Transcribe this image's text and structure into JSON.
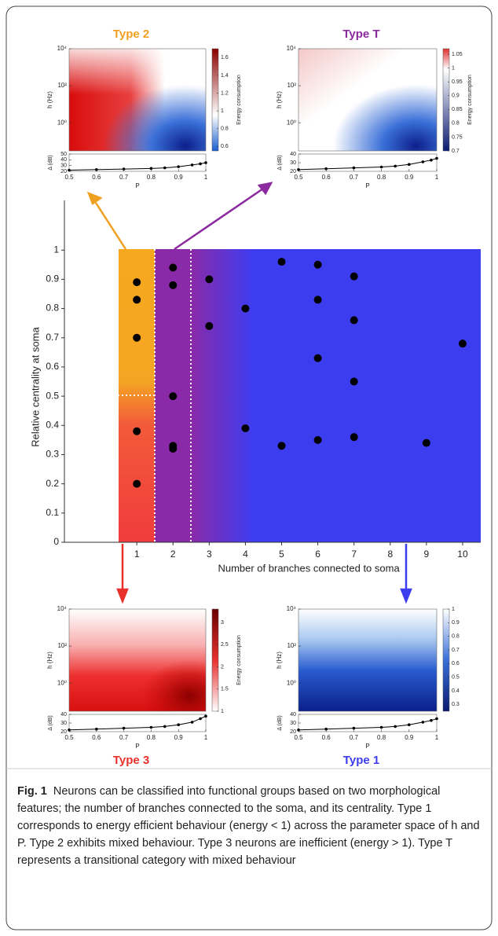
{
  "chart_data": [
    {
      "type": "scatter",
      "xlabel": "Number of branches connected to soma",
      "ylabel": "Relative centrality at soma",
      "x": [
        1,
        1,
        1,
        1,
        1,
        2,
        2,
        2,
        2,
        2,
        3,
        3,
        4,
        4,
        5,
        5,
        6,
        6,
        6,
        6,
        7,
        7,
        7,
        7,
        9,
        10
      ],
      "y": [
        0.89,
        0.83,
        0.7,
        0.38,
        0.2,
        0.94,
        0.88,
        0.5,
        0.33,
        0.32,
        0.9,
        0.74,
        0.8,
        0.39,
        0.96,
        0.33,
        0.95,
        0.83,
        0.63,
        0.35,
        0.91,
        0.76,
        0.55,
        0.36,
        0.34,
        0.68
      ],
      "color": "#000000",
      "xlim": [
        -1,
        10.5
      ],
      "xticks": [
        1,
        2,
        3,
        4,
        5,
        6,
        7,
        8,
        9,
        10
      ],
      "ylim": [
        0,
        1.17
      ],
      "yticks": [
        0,
        0.1,
        0.2,
        0.3,
        0.4,
        0.5,
        0.6,
        0.7,
        0.8,
        0.9,
        1
      ]
    },
    {
      "type": "heatmap",
      "title": "Type 2",
      "title_color": "#f0a020",
      "xlabel": "P",
      "ylabel": "h (Hz)",
      "xlim": [
        0.5,
        1
      ],
      "xticks": [
        0.5,
        0.6,
        0.7,
        0.8,
        0.9,
        1
      ],
      "log_scale": true,
      "ylim": [
        0.03,
        10000
      ],
      "yticks": [
        {
          "value": 1,
          "label": "10⁰"
        },
        {
          "value": 100,
          "label": "10²"
        },
        {
          "value": 10000,
          "label": "10⁴"
        }
      ],
      "colorbar": {
        "label": "Energy consumption",
        "lim": [
          0.55,
          1.7
        ],
        "ticks": [
          0.6,
          0.8,
          1,
          1.2,
          1.4,
          1.6
        ]
      },
      "delta": {
        "ylabel": "Δ (dB)",
        "ylim": [
          20,
          50
        ],
        "yticks": [
          20,
          30,
          40,
          50
        ],
        "x": [
          0.5,
          0.6,
          0.7,
          0.8,
          0.85,
          0.9,
          0.95,
          0.98,
          1
        ],
        "values": [
          22,
          23,
          24,
          25,
          26,
          28,
          31,
          33,
          35
        ]
      }
    },
    {
      "type": "heatmap",
      "title": "Type T",
      "title_color": "#8b2a9e",
      "xlabel": "P",
      "ylabel": "h (Hz)",
      "xlim": [
        0.5,
        1
      ],
      "xticks": [
        0.5,
        0.6,
        0.7,
        0.8,
        0.9,
        1
      ],
      "log_scale": true,
      "ylim": [
        0.03,
        10000
      ],
      "yticks": [
        {
          "value": 1,
          "label": "10⁰"
        },
        {
          "value": 100,
          "label": "10²"
        },
        {
          "value": 10000,
          "label": "10⁴"
        }
      ],
      "colorbar": {
        "label": "Energy consumption",
        "lim": [
          0.7,
          1.07
        ],
        "ticks": [
          0.7,
          0.75,
          0.8,
          0.85,
          0.9,
          0.95,
          1,
          1.05
        ]
      },
      "delta": {
        "ylabel": "Δ (dB)",
        "ylim": [
          20,
          40
        ],
        "yticks": [
          20,
          30,
          40
        ],
        "x": [
          0.5,
          0.6,
          0.7,
          0.8,
          0.85,
          0.9,
          0.95,
          0.98,
          1
        ],
        "values": [
          22,
          23,
          24,
          25,
          26,
          28,
          31,
          33,
          35
        ]
      }
    },
    {
      "type": "heatmap",
      "title": "Type 3",
      "title_color": "#e8312a",
      "xlabel": "P",
      "ylabel": "h (Hz)",
      "xlim": [
        0.5,
        1
      ],
      "xticks": [
        0.5,
        0.6,
        0.7,
        0.8,
        0.9,
        1
      ],
      "log_scale": true,
      "ylim": [
        0.03,
        10000
      ],
      "yticks": [
        {
          "value": 1,
          "label": "10⁰"
        },
        {
          "value": 100,
          "label": "10²"
        },
        {
          "value": 10000,
          "label": "10⁴"
        }
      ],
      "colorbar": {
        "label": "Energy consumption",
        "lim": [
          1,
          3.3
        ],
        "ticks": [
          1,
          1.5,
          2,
          2.5,
          3
        ]
      },
      "delta": {
        "ylabel": "Δ (dB)",
        "ylim": [
          20,
          40
        ],
        "yticks": [
          20,
          30,
          40
        ],
        "x": [
          0.5,
          0.6,
          0.7,
          0.8,
          0.85,
          0.9,
          0.95,
          0.98,
          1
        ],
        "values": [
          22,
          23,
          24,
          25,
          26,
          28,
          31,
          35,
          38
        ]
      }
    },
    {
      "type": "heatmap",
      "title": "Type 1",
      "title_color": "#3d3df0",
      "xlabel": "P",
      "ylabel": "h (Hz)",
      "xlim": [
        0.5,
        1
      ],
      "xticks": [
        0.5,
        0.6,
        0.7,
        0.8,
        0.9,
        1
      ],
      "log_scale": true,
      "ylim": [
        0.03,
        10000
      ],
      "yticks": [
        {
          "value": 1,
          "label": "10⁰"
        },
        {
          "value": 100,
          "label": "10²"
        },
        {
          "value": 10000,
          "label": "10⁴"
        }
      ],
      "colorbar": {
        "label": "",
        "lim": [
          0.25,
          1
        ],
        "ticks": [
          0.3,
          0.4,
          0.5,
          0.6,
          0.7,
          0.8,
          0.9,
          1
        ]
      },
      "delta": {
        "ylabel": "Δ (dB)",
        "ylim": [
          20,
          40
        ],
        "yticks": [
          20,
          30,
          40
        ],
        "x": [
          0.5,
          0.6,
          0.7,
          0.8,
          0.85,
          0.9,
          0.95,
          0.98,
          1
        ],
        "values": [
          22,
          23,
          24,
          25,
          26,
          28,
          31,
          33,
          35
        ]
      }
    }
  ],
  "caption": {
    "label": "Fig. 1",
    "text": "Neurons can be classified into functional groups based on two morphological features; the number of branches connected to the soma, and its centrality. Type 1 corresponds to energy efficient behaviour (energy < 1) across the parameter space of h and P. Type 2 exhibits mixed behaviour. Type 3 neurons are inefficient (energy > 1). Type T represents a transitional category with mixed behaviour"
  }
}
